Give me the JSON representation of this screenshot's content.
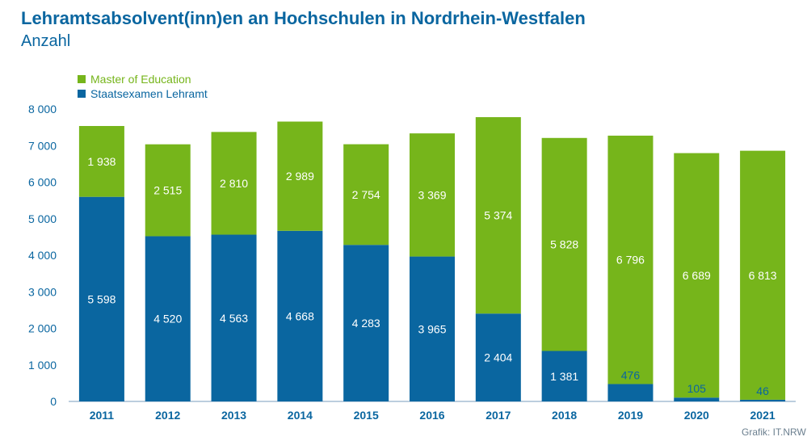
{
  "title": "Lehramtsabsolvent(inn)en an Hochschulen in Nordrhein-Westfalen",
  "subtitle": "Anzahl",
  "source": "Grafik: IT.NRW",
  "colors": {
    "master": "#76b51b",
    "staatsexamen": "#0a66a0",
    "text_blue": "#0a66a0",
    "axis": "#7a9cbd"
  },
  "chart_data": {
    "type": "bar",
    "stacked": true,
    "categories": [
      "2011",
      "2012",
      "2013",
      "2014",
      "2015",
      "2016",
      "2017",
      "2018",
      "2019",
      "2020",
      "2021"
    ],
    "series": [
      {
        "name": "Staatsexamen Lehramt",
        "values": [
          5598,
          4520,
          4563,
          4668,
          4283,
          3965,
          2404,
          1381,
          476,
          105,
          46
        ],
        "labels": [
          "5 598",
          "4 520",
          "4 563",
          "4 668",
          "4 283",
          "3 965",
          "2 404",
          "1 381",
          "476",
          "105",
          "46"
        ]
      },
      {
        "name": "Master of Education",
        "values": [
          1938,
          2515,
          2810,
          2989,
          2754,
          3369,
          5374,
          5828,
          6796,
          6689,
          6813
        ],
        "labels": [
          "1 938",
          "2 515",
          "2 810",
          "2 989",
          "2 754",
          "3 369",
          "5 374",
          "5 828",
          "6 796",
          "6 689",
          "6 813"
        ]
      }
    ],
    "ylim": [
      0,
      8000
    ],
    "yticks": [
      0,
      1000,
      2000,
      3000,
      4000,
      5000,
      6000,
      7000,
      8000
    ],
    "ytick_labels": [
      "0",
      "1 000",
      "2 000",
      "3 000",
      "4 000",
      "5 000",
      "6 000",
      "7 000",
      "8 000"
    ],
    "legend": [
      {
        "label": "Master of Education",
        "color": "#76b51b"
      },
      {
        "label": "Staatsexamen Lehramt",
        "color": "#0a66a0"
      }
    ],
    "legend_position": "top-left",
    "grid": false
  }
}
